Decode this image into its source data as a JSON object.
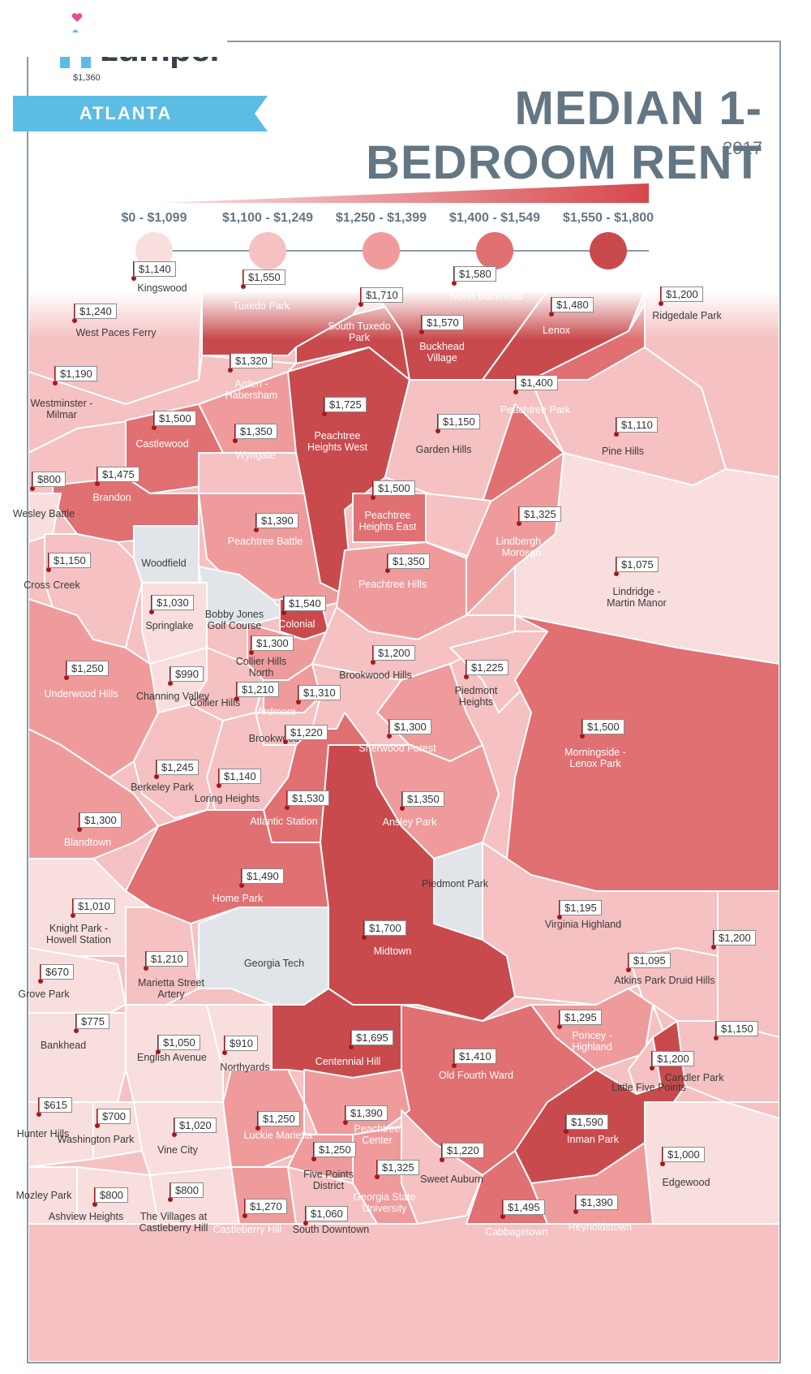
{
  "header": {
    "brand": "zumper",
    "brand_sub": "$1,360",
    "city": "ATLANTA",
    "title": "MEDIAN 1-BEDROOM RENT",
    "year": "2017"
  },
  "legend": [
    {
      "label": "$0 - $1,099",
      "color": "#f9dede"
    },
    {
      "label": "$1,100 - $1,249",
      "color": "#f5c1c2"
    },
    {
      "label": "$1,250 - $1,399",
      "color": "#ef9b9c"
    },
    {
      "label": "$1,400 - $1,549",
      "color": "#e07072"
    },
    {
      "label": "$1,550 - $1,800",
      "color": "#c94a4d"
    }
  ],
  "colors": {
    "accent": "#5bbde4",
    "title": "#637684",
    "tier0": "#f9dede",
    "tier1": "#f5c1c2",
    "tier2": "#ef9b9c",
    "tier3": "#e07072",
    "tier4": "#c94a4d",
    "park": "#e1e5e9",
    "pin": "#a8161a"
  },
  "neighborhoods": [
    {
      "name": "Kingswood",
      "price": "$1,140"
    },
    {
      "name": "Tuxedo Park",
      "price": "$1,550"
    },
    {
      "name": "South Tuxedo Park",
      "price": "$1,710"
    },
    {
      "name": "North Buckhead",
      "price": "$1,580"
    },
    {
      "name": "Buckhead Village",
      "price": "$1,570"
    },
    {
      "name": "Lenox",
      "price": "$1,480"
    },
    {
      "name": "Ridgedale Park",
      "price": "$1,200"
    },
    {
      "name": "West Paces Ferry",
      "price": "$1,240"
    },
    {
      "name": "Arden - Habersham",
      "price": "$1,320"
    },
    {
      "name": "Westminster - Milmar",
      "price": "$1,190"
    },
    {
      "name": "Peachtree Heights West",
      "price": "$1,725"
    },
    {
      "name": "Peachtree Park",
      "price": "$1,400"
    },
    {
      "name": "Castlewood",
      "price": "$1,500"
    },
    {
      "name": "Garden Hills",
      "price": "$1,150"
    },
    {
      "name": "Pine Hills",
      "price": "$1,110"
    },
    {
      "name": "Wyngate",
      "price": "$1,350"
    },
    {
      "name": "Wesley Battle",
      "price": "$800"
    },
    {
      "name": "Brandon",
      "price": "$1,475"
    },
    {
      "name": "Peachtree Heights East",
      "price": "$1,500"
    },
    {
      "name": "Lindbergh - Morosgo",
      "price": "$1,325"
    },
    {
      "name": "Peachtree Battle",
      "price": "$1,390"
    },
    {
      "name": "Woodfield",
      "price": ""
    },
    {
      "name": "Cross Creek",
      "price": "$1,150"
    },
    {
      "name": "Peachtree Hills",
      "price": "$1,350"
    },
    {
      "name": "Lindridge - Martin Manor",
      "price": "$1,075"
    },
    {
      "name": "Springlake",
      "price": "$1,030"
    },
    {
      "name": "Bobby Jones Golf Course",
      "price": ""
    },
    {
      "name": "Colonial",
      "price": "$1,540"
    },
    {
      "name": "Collier Hills North",
      "price": "$1,300"
    },
    {
      "name": "Brookwood Hills",
      "price": "$1,200"
    },
    {
      "name": "Underwood Hills",
      "price": "$1,250"
    },
    {
      "name": "Channing Valley",
      "price": "$990"
    },
    {
      "name": "Piedmont Heights",
      "price": "$1,225"
    },
    {
      "name": "Collier Hills",
      "price": "$1,210"
    },
    {
      "name": "Ardmore",
      "price": "$1,310"
    },
    {
      "name": "Brookwood",
      "price": "$1,220"
    },
    {
      "name": "Sherwood Forest",
      "price": "$1,300"
    },
    {
      "name": "Morningside - Lenox Park",
      "price": "$1,500"
    },
    {
      "name": "Berkeley Park",
      "price": "$1,245"
    },
    {
      "name": "Loring Heights",
      "price": "$1,140"
    },
    {
      "name": "Atlantic Station",
      "price": "$1,530"
    },
    {
      "name": "Ansley Park",
      "price": "$1,350"
    },
    {
      "name": "Blandtown",
      "price": "$1,300"
    },
    {
      "name": "Home Park",
      "price": "$1,490"
    },
    {
      "name": "Piedmont Park",
      "price": ""
    },
    {
      "name": "Knight Park - Howell Station",
      "price": "$1,010"
    },
    {
      "name": "Virginia Highland",
      "price": "$1,195"
    },
    {
      "name": "Midtown",
      "price": "$1,700"
    },
    {
      "name": "Marietta Street Artery",
      "price": "$1,210"
    },
    {
      "name": "Georgia Tech",
      "price": ""
    },
    {
      "name": "Grove Park",
      "price": "$670"
    },
    {
      "name": "Atkins Park",
      "price": "$1,095"
    },
    {
      "name": "Druid Hills",
      "price": "$1,200"
    },
    {
      "name": "Bankhead",
      "price": "$775"
    },
    {
      "name": "English Avenue",
      "price": "$1,050"
    },
    {
      "name": "Northyards",
      "price": "$910"
    },
    {
      "name": "Centennial Hill",
      "price": "$1,695"
    },
    {
      "name": "Poncey - Highland",
      "price": "$1,295"
    },
    {
      "name": "Candler Park",
      "price": "$1,150"
    },
    {
      "name": "Old Fourth Ward",
      "price": "$1,410"
    },
    {
      "name": "Little Five Points",
      "price": "$1,200"
    },
    {
      "name": "Hunter Hills",
      "price": "$615"
    },
    {
      "name": "Washington Park",
      "price": "$700"
    },
    {
      "name": "Vine City",
      "price": "$1,020"
    },
    {
      "name": "Luckie Marietta",
      "price": "$1,250"
    },
    {
      "name": "Peachtree Center",
      "price": "$1,390"
    },
    {
      "name": "Inman Park",
      "price": "$1,590"
    },
    {
      "name": "Five Points District",
      "price": "$1,250"
    },
    {
      "name": "Sweet Auburn",
      "price": "$1,220"
    },
    {
      "name": "Edgewood",
      "price": "$1,000"
    },
    {
      "name": "Georgia State University",
      "price": "$1,325"
    },
    {
      "name": "Mozley Park",
      "price": ""
    },
    {
      "name": "Ashview Heights",
      "price": "$800"
    },
    {
      "name": "The Villages at Castleberry Hill",
      "price": "$800"
    },
    {
      "name": "Castleberry Hill",
      "price": "$1,270"
    },
    {
      "name": "South Downtown",
      "price": "$1,060"
    },
    {
      "name": "Cabbagetown",
      "price": "$1,495"
    },
    {
      "name": "Reynoldstown",
      "price": "$1,390"
    }
  ]
}
